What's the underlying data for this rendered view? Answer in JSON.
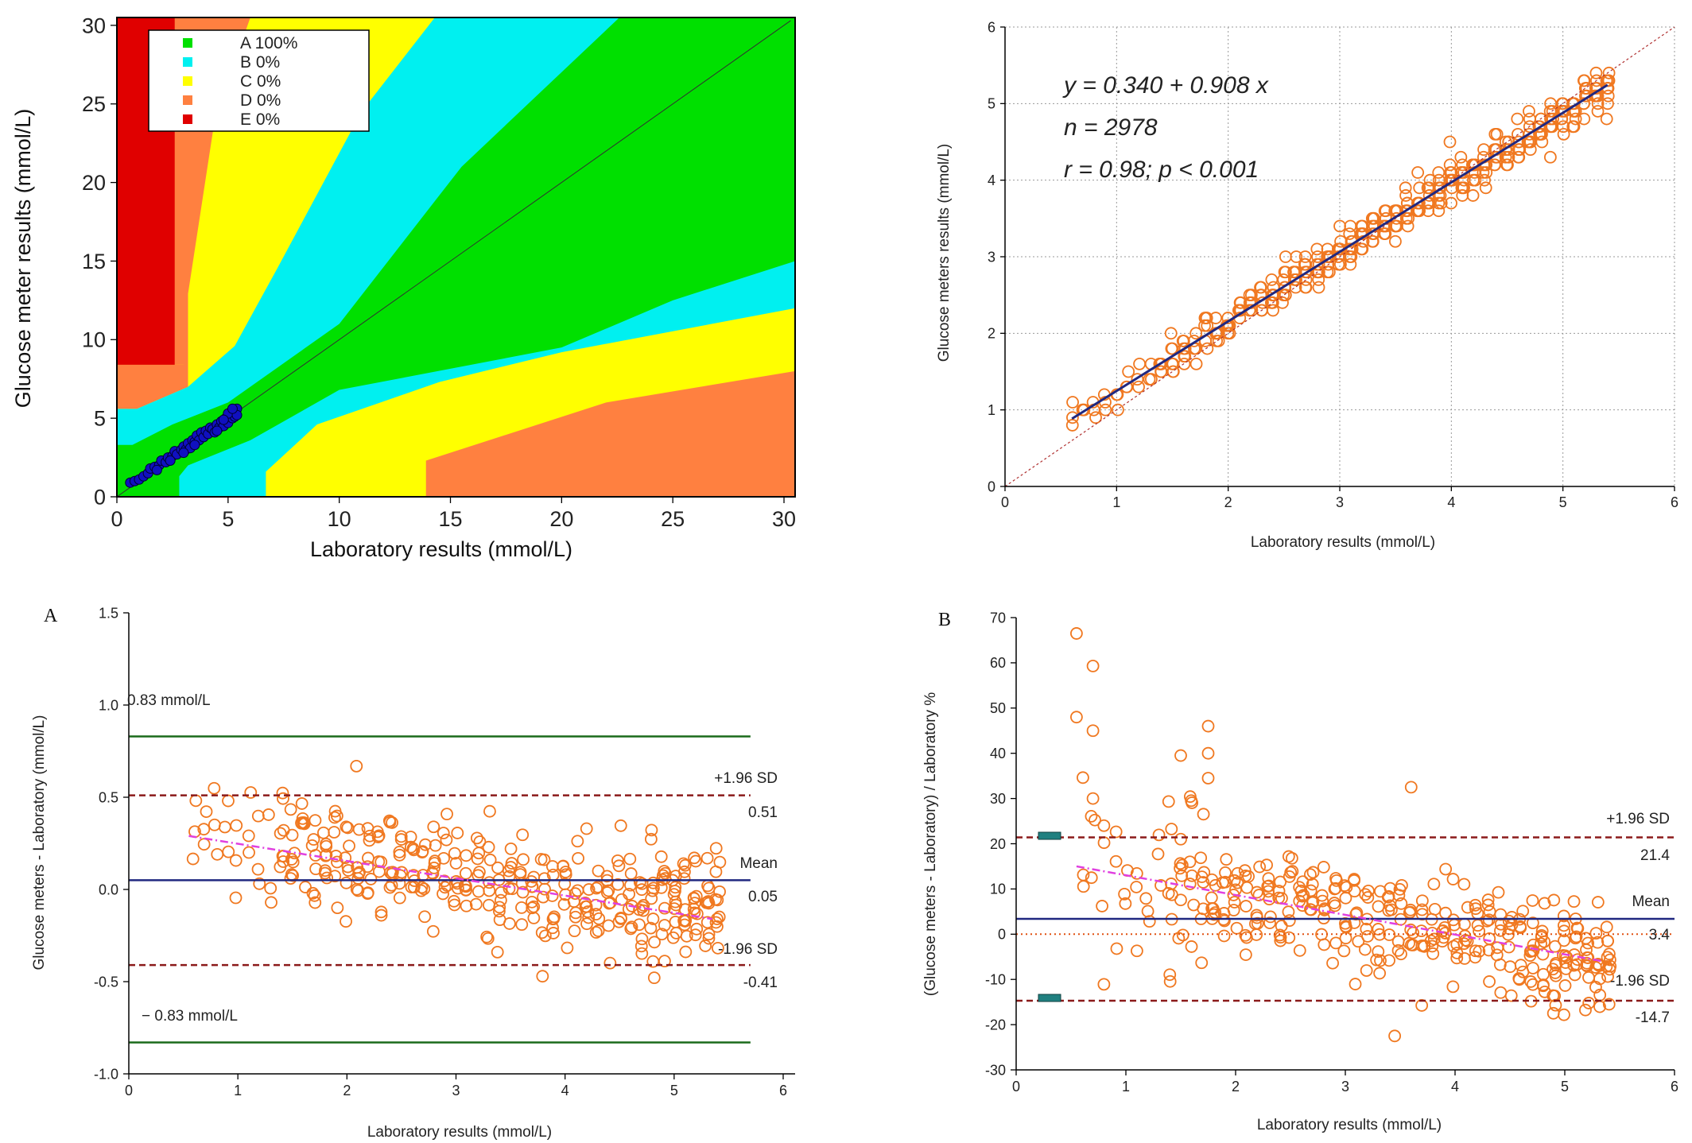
{
  "colors": {
    "zone_A": "#00e000",
    "zone_B": "#00f0f0",
    "zone_C": "#ffff00",
    "zone_D": "#ff8040",
    "zone_E": "#e00000",
    "point_fill": "#1010c0",
    "orange_point": "#f07820",
    "regression_line": "#202880",
    "mean_line": "#202880",
    "limit_line": "#8b1a1a",
    "ext_limit_line": "#1a6a1a",
    "trend_line": "#e040e0",
    "zero_line": "#e05010"
  },
  "chart_data": [
    {
      "id": "clarke",
      "type": "scatter",
      "xlabel": "Laboratory results (mmol/L)",
      "ylabel": "Glucose meter results (mmol/L)",
      "xlim": [
        0,
        30.5
      ],
      "ylim": [
        0,
        30.5
      ],
      "xticks": [
        "0",
        "5",
        "10",
        "15",
        "20",
        "25",
        "30"
      ],
      "yticks": [
        "0",
        "5",
        "10",
        "15",
        "20",
        "25",
        "30"
      ],
      "legend": [
        {
          "label": "A 100%",
          "color": "#00e000"
        },
        {
          "label": "B 0%",
          "color": "#00f0f0"
        },
        {
          "label": "C 0%",
          "color": "#ffff00"
        },
        {
          "label": "D 0%",
          "color": "#ff8040"
        },
        {
          "label": "E 0%",
          "color": "#e00000"
        }
      ],
      "legend_position": "top-left",
      "points": [
        [
          0.6,
          0.9
        ],
        [
          0.8,
          1.0
        ],
        [
          1.0,
          1.1
        ],
        [
          1.2,
          1.3
        ],
        [
          1.4,
          1.5
        ],
        [
          1.5,
          1.8
        ],
        [
          1.7,
          1.9
        ],
        [
          1.9,
          2.0
        ],
        [
          2.0,
          2.3
        ],
        [
          2.2,
          2.2
        ],
        [
          2.3,
          2.5
        ],
        [
          2.5,
          2.6
        ],
        [
          2.6,
          2.9
        ],
        [
          2.7,
          2.7
        ],
        [
          2.9,
          3.0
        ],
        [
          3.0,
          3.2
        ],
        [
          3.1,
          3.0
        ],
        [
          3.2,
          3.4
        ],
        [
          3.3,
          3.1
        ],
        [
          3.4,
          3.6
        ],
        [
          3.5,
          3.5
        ],
        [
          3.6,
          3.9
        ],
        [
          3.7,
          3.6
        ],
        [
          3.8,
          4.1
        ],
        [
          3.9,
          3.8
        ],
        [
          4.0,
          4.2
        ],
        [
          4.1,
          4.0
        ],
        [
          4.2,
          4.4
        ],
        [
          4.3,
          4.3
        ],
        [
          4.4,
          4.1
        ],
        [
          4.5,
          4.6
        ],
        [
          4.6,
          4.4
        ],
        [
          4.7,
          4.8
        ],
        [
          4.8,
          4.5
        ],
        [
          4.9,
          5.0
        ],
        [
          5.0,
          4.7
        ],
        [
          5.1,
          5.2
        ],
        [
          5.2,
          5.0
        ],
        [
          5.3,
          5.4
        ],
        [
          5.4,
          5.6
        ],
        [
          5.3,
          5.1
        ],
        [
          5.0,
          5.3
        ],
        [
          4.8,
          4.9
        ],
        [
          4.5,
          4.2
        ],
        [
          3.5,
          3.3
        ],
        [
          3.0,
          2.8
        ],
        [
          2.4,
          2.3
        ],
        [
          1.8,
          1.7
        ],
        [
          5.4,
          5.2
        ],
        [
          5.2,
          5.6
        ]
      ]
    },
    {
      "id": "regression",
      "type": "scatter",
      "xlabel": "Laboratory results (mmol/L)",
      "ylabel": "Glucose meters results (mmol/L)",
      "xlim": [
        0,
        6
      ],
      "ylim": [
        0,
        6
      ],
      "xticks": [
        "0",
        "1",
        "2",
        "3",
        "4",
        "5",
        "6"
      ],
      "yticks": [
        "0",
        "1",
        "2",
        "3",
        "4",
        "5",
        "6"
      ],
      "grid": true,
      "annotation_lines": [
        "y = 0.340 + 0.908 x",
        "n = 2978",
        "r = 0.98; p < 0.001"
      ],
      "regression": {
        "intercept": 0.34,
        "slope": 0.908,
        "x_range": [
          0.6,
          5.4
        ]
      },
      "identity_line": true
    },
    {
      "id": "bland_altman_abs",
      "panel_label": "A",
      "type": "scatter",
      "xlabel": "Laboratory results (mmol/L)",
      "ylabel": "Glucose meters - Laboratory (mmol/L)",
      "xlim": [
        0,
        6
      ],
      "ylim": [
        -1.0,
        1.5
      ],
      "xticks": [
        "0",
        "1",
        "2",
        "3",
        "4",
        "5",
        "6"
      ],
      "yticks": [
        "-1.0",
        "-0.5",
        "0.0",
        "0.5",
        "1.0",
        "1.5"
      ],
      "mean": 0.05,
      "upper_loa": 0.51,
      "lower_loa": -0.41,
      "upper_ext": 0.83,
      "lower_ext": -0.83,
      "trend": {
        "x": [
          0.55,
          5.35
        ],
        "y": [
          0.29,
          -0.16
        ]
      },
      "labels": {
        "upper_ext": "0.83 mmol/L",
        "lower_ext": "− 0.83 mmol/L",
        "upper_loa_name": "+1.96 SD",
        "upper_loa_value": "0.51",
        "mean_name": "Mean",
        "mean_value": "0.05",
        "lower_loa_name": "-1.96 SD",
        "lower_loa_value": "-0.41"
      }
    },
    {
      "id": "bland_altman_pct",
      "panel_label": "B",
      "type": "scatter",
      "xlabel": "Laboratory results (mmol/L)",
      "ylabel": "(Glucose meters - Laboratory) / Laboratory %",
      "xlim": [
        0,
        6
      ],
      "ylim": [
        -30,
        70
      ],
      "xticks": [
        "0",
        "1",
        "2",
        "3",
        "4",
        "5",
        "6"
      ],
      "yticks": [
        "-30",
        "-20",
        "-10",
        "0",
        "10",
        "20",
        "30",
        "40",
        "50",
        "60",
        "70"
      ],
      "mean": 3.4,
      "upper_loa": 21.4,
      "lower_loa": -14.7,
      "trend": {
        "x": [
          0.55,
          5.35
        ],
        "y": [
          15.0,
          -6.0
        ]
      },
      "labels": {
        "upper_loa_name": "+1.96 SD",
        "upper_loa_value": "21.4",
        "mean_name": "Mean",
        "mean_value": "3.4",
        "lower_loa_name": "-1.96 SD",
        "lower_loa_value": "-14.7"
      }
    }
  ]
}
